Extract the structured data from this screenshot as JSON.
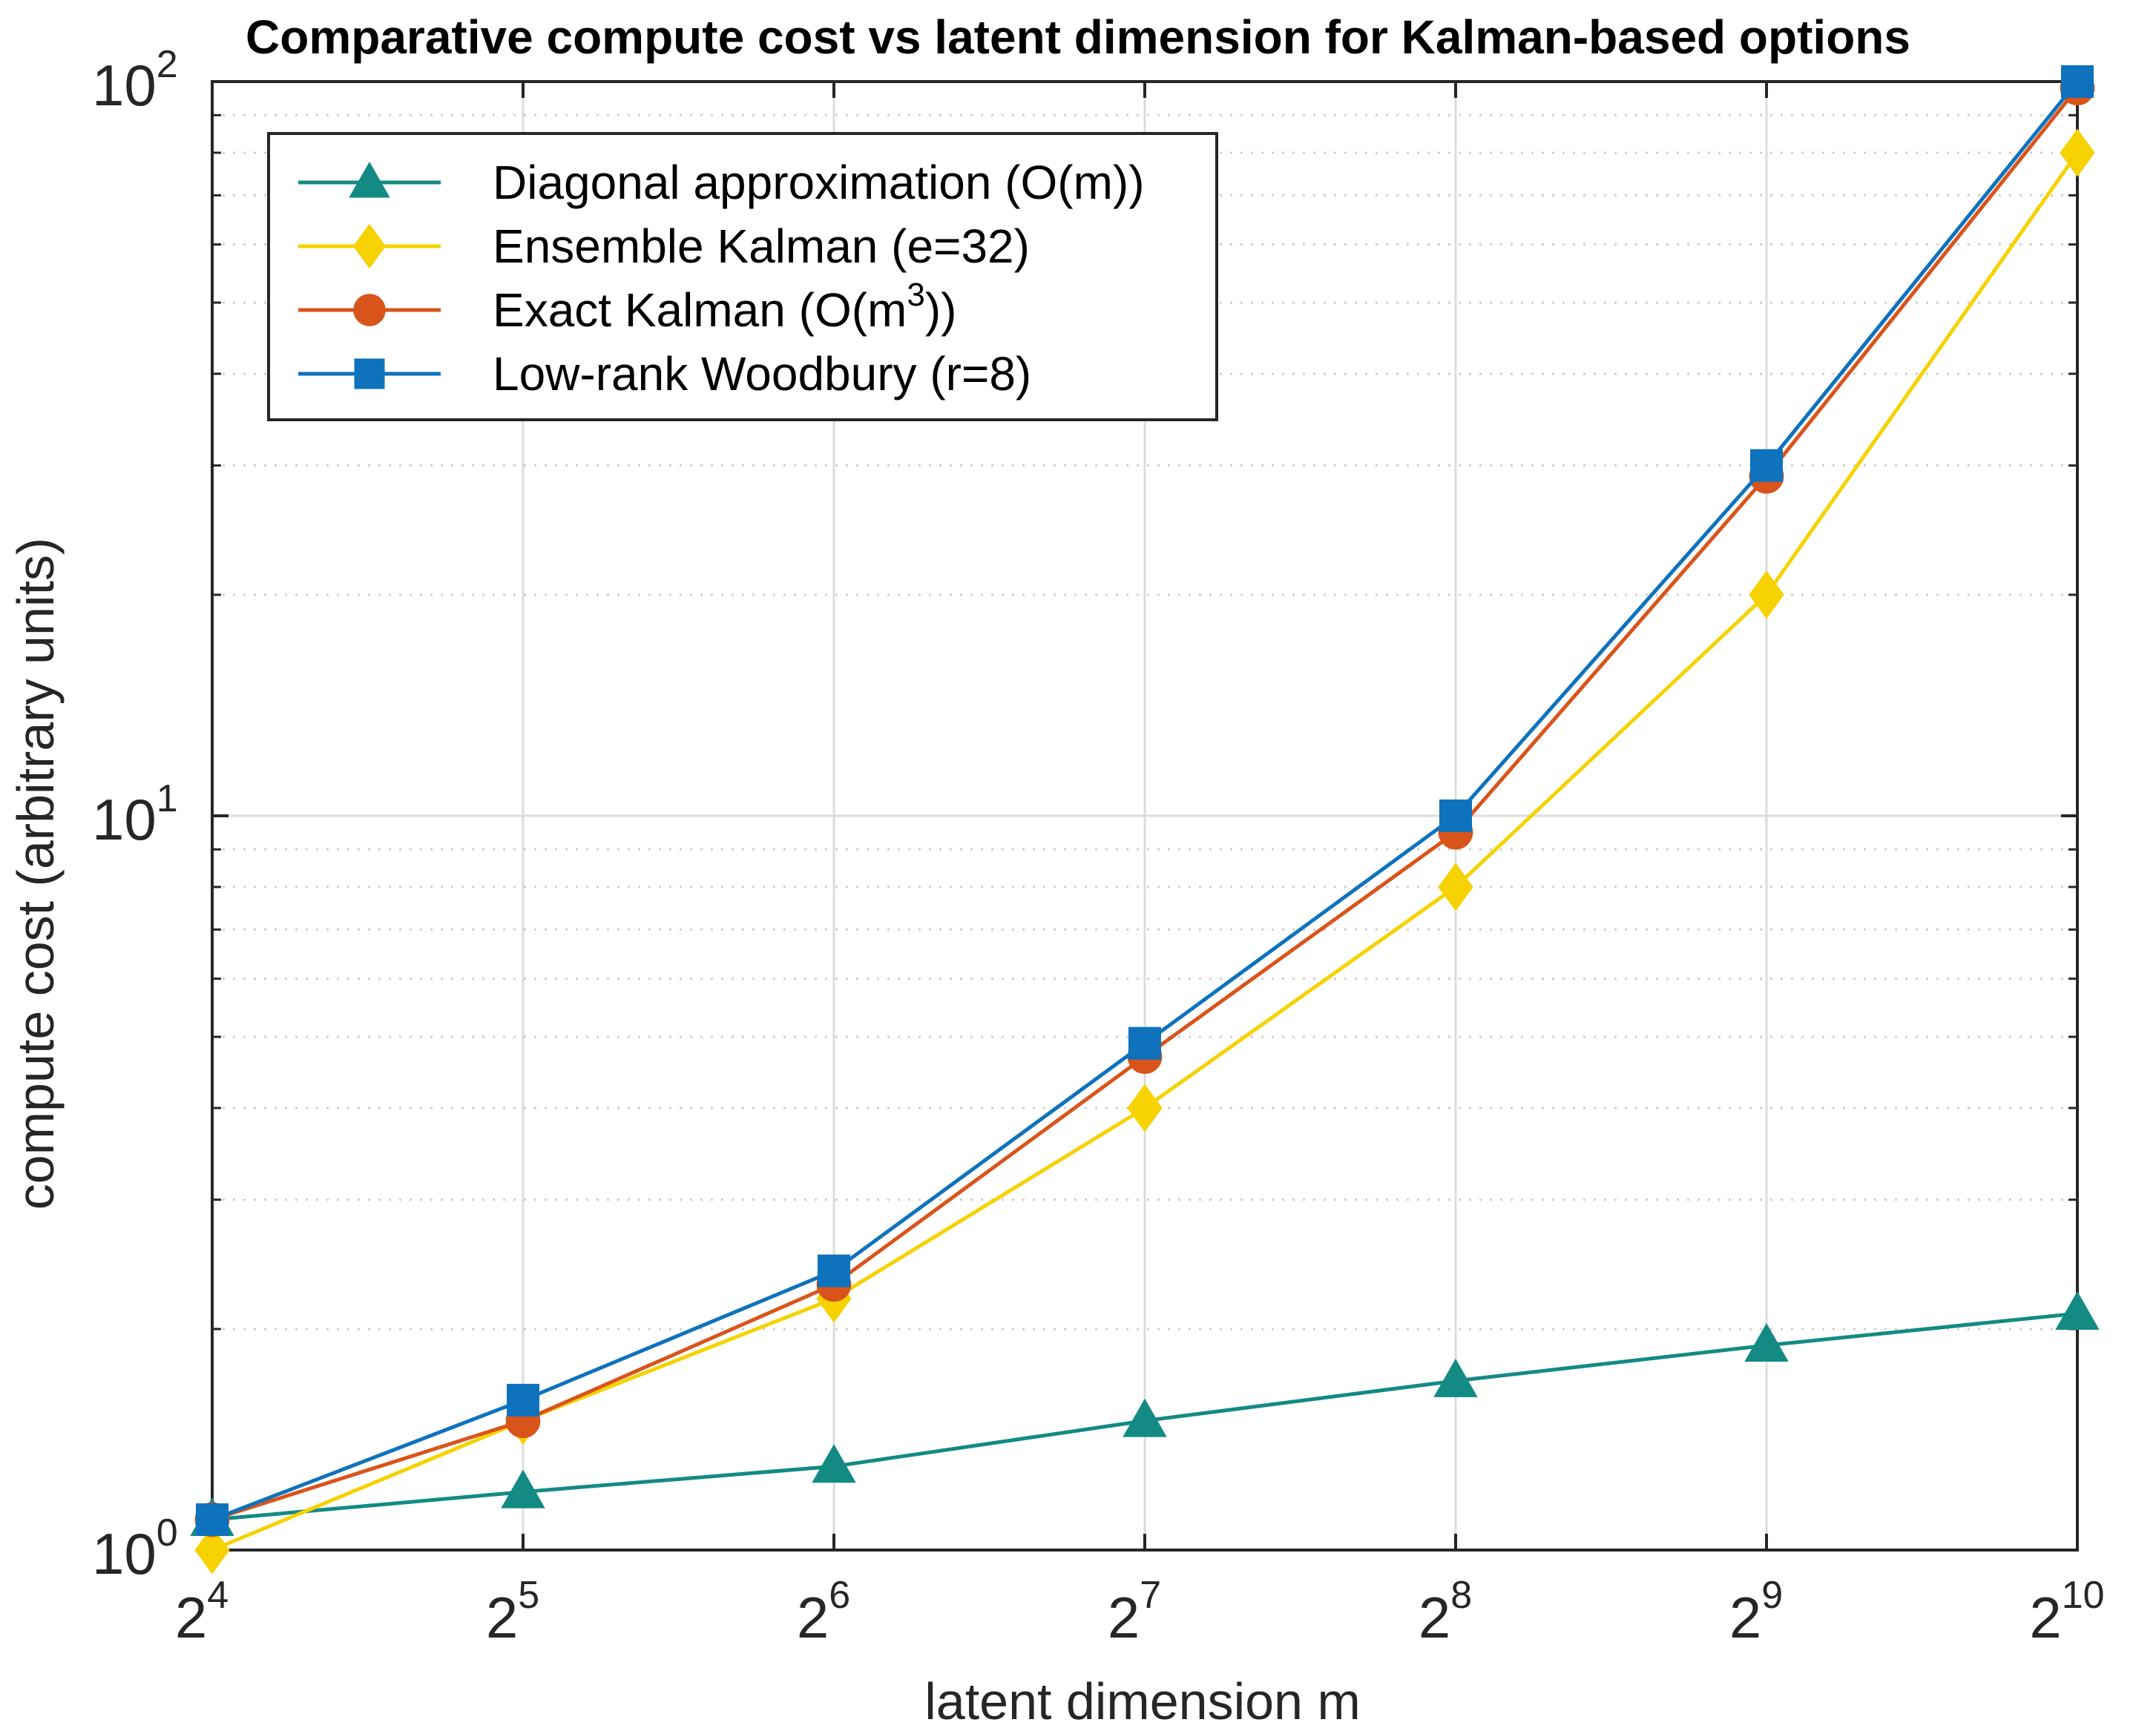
{
  "chart_data": {
    "type": "line",
    "title": "Comparative compute cost vs latent dimension for Kalman-based options",
    "xlabel": "latent dimension m",
    "ylabel": "compute cost (arbitrary units)",
    "xscale": "log2",
    "yscale": "log10",
    "x": [
      16,
      32,
      64,
      128,
      256,
      512,
      1024
    ],
    "x_ticks": [
      {
        "base": "2",
        "exp": "4"
      },
      {
        "base": "2",
        "exp": "5"
      },
      {
        "base": "2",
        "exp": "6"
      },
      {
        "base": "2",
        "exp": "7"
      },
      {
        "base": "2",
        "exp": "8"
      },
      {
        "base": "2",
        "exp": "9"
      },
      {
        "base": "2",
        "exp": "10"
      }
    ],
    "y_ticks": [
      {
        "value": 1,
        "base": "10",
        "exp": "0"
      },
      {
        "value": 10,
        "base": "10",
        "exp": "1"
      },
      {
        "value": 100,
        "base": "10",
        "exp": "2"
      }
    ],
    "xlim": [
      16,
      1024
    ],
    "ylim": [
      1,
      100
    ],
    "grid": true,
    "legend_position": "top-left",
    "series": [
      {
        "name": "Diagonal approximation (O(m))",
        "label_main": "Diagonal approximation (O(m))",
        "label_sup": "",
        "label_tail": "",
        "color": "#138a84",
        "marker": "triangle",
        "values": [
          1.1,
          1.2,
          1.3,
          1.5,
          1.7,
          1.9,
          2.1
        ]
      },
      {
        "name": "Ensemble Kalman (e=32)",
        "label_main": "Ensemble Kalman (e=32)",
        "label_sup": "",
        "label_tail": "",
        "color": "#f5d200",
        "marker": "diamond",
        "values": [
          1.0,
          1.5,
          2.2,
          4.0,
          8.0,
          20.0,
          80.0
        ]
      },
      {
        "name": "Exact Kalman (O(m^3))",
        "label_main": "Exact Kalman (O(m",
        "label_sup": "3",
        "label_tail": "))",
        "color": "#d9541a",
        "marker": "circle",
        "values": [
          1.1,
          1.5,
          2.3,
          4.7,
          9.5,
          29.0,
          98.0
        ]
      },
      {
        "name": "Low-rank Woodbury (r=8)",
        "label_main": "Low-rank Woodbury (r=8)",
        "label_sup": "",
        "label_tail": "",
        "color": "#0e72bd",
        "marker": "square",
        "values": [
          1.1,
          1.6,
          2.4,
          4.9,
          10.0,
          30.0,
          100.0
        ]
      }
    ]
  }
}
